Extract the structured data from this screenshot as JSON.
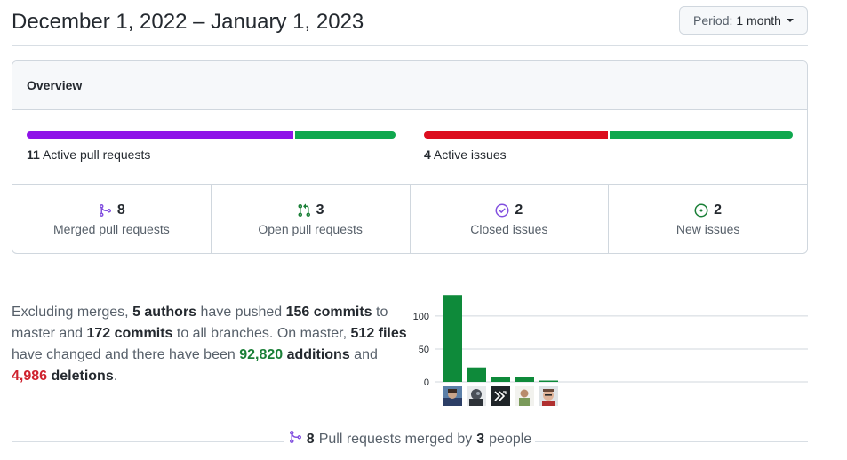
{
  "header": {
    "date_range": "December 1, 2022 – January 1, 2023",
    "period_label": "Period:",
    "period_value": "1 month"
  },
  "overview": {
    "title": "Overview",
    "pull_requests": {
      "count": "11",
      "label": "Active pull requests",
      "merged_fraction": 0.727,
      "colors": [
        "#8e12e8",
        "#0fa84e"
      ]
    },
    "issues": {
      "count": "4",
      "label": "Active issues",
      "closed_fraction": 0.5,
      "colors": [
        "#dc0d1e",
        "#0fa84e"
      ]
    },
    "stats": [
      {
        "icon": "git-merge-icon",
        "count": "8",
        "label": "Merged pull requests",
        "color": "#8250df"
      },
      {
        "icon": "git-pull-request-icon",
        "count": "3",
        "label": "Open pull requests",
        "color": "#1a7f37"
      },
      {
        "icon": "issue-closed-icon",
        "count": "2",
        "label": "Closed issues",
        "color": "#8250df"
      },
      {
        "icon": "issue-opened-icon",
        "count": "2",
        "label": "New issues",
        "color": "#1a7f37"
      }
    ]
  },
  "summary": {
    "t1": "Excluding merges, ",
    "authors": "5 authors",
    "t2": " have pushed ",
    "commits_master": "156 commits",
    "t3": " to master and ",
    "commits_all": "172 commits",
    "t4": " to all branches. On master, ",
    "files": "512 files",
    "t5": " have changed and there have been ",
    "additions_num": "92,820",
    "additions_word": " additions",
    "t6": " and ",
    "deletions_num": "4,986",
    "deletions_word": " deletions",
    "t7": "."
  },
  "chart_data": {
    "type": "bar",
    "categories": [
      "author1",
      "author2",
      "author3",
      "author4",
      "author5"
    ],
    "values": [
      132,
      22,
      8,
      8,
      2
    ],
    "yticks": [
      0,
      50,
      100
    ],
    "ylim": [
      0,
      135
    ],
    "color": "#0e8a3a"
  },
  "footer": {
    "count": "8",
    "text": "Pull requests merged by",
    "people_count": "3",
    "people_word": "people"
  }
}
